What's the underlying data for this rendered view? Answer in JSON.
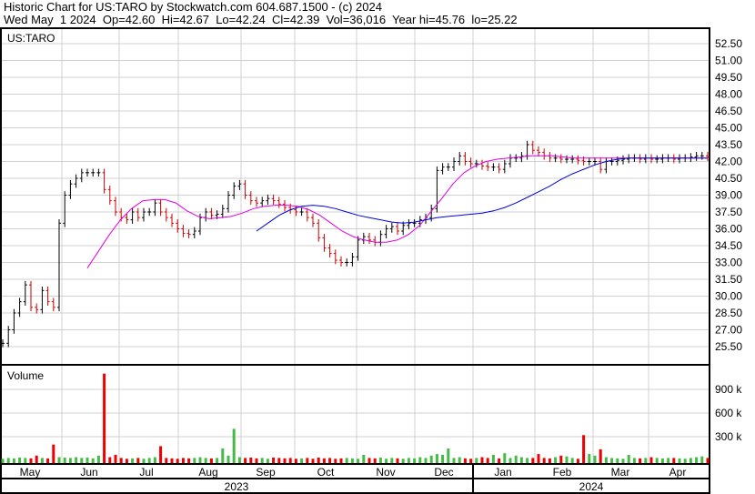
{
  "header": {
    "title": "Historic Chart for US:TARO by Stockwatch.com 604.687.1500 - (c) 2024",
    "quote": "Wed May  1 2024  Op=42.60  Hi=42.67  Lo=42.24  Cl=42.39  Vol=36,016  Year hi=45.76  lo=25.22"
  },
  "chart_data": [
    {
      "type": "bar",
      "title": "US:TARO",
      "subtype": "ohlc",
      "ylim": [
        24.5,
        53.5
      ],
      "yticks": [
        "52.50",
        "51.00",
        "49.50",
        "48.00",
        "46.50",
        "45.00",
        "43.50",
        "42.00",
        "40.50",
        "39.00",
        "37.50",
        "36.00",
        "34.50",
        "33.00",
        "31.50",
        "30.00",
        "28.50",
        "27.00",
        "25.50"
      ],
      "grid": true,
      "close": [
        25.8,
        27,
        28.5,
        29.5,
        31,
        29,
        28.8,
        30.5,
        29.5,
        29,
        36.5,
        39,
        40,
        40.5,
        41,
        41,
        41,
        41,
        39.5,
        38.5,
        37.5,
        37,
        36.8,
        37.5,
        37,
        37.5,
        37.5,
        38.3,
        37.5,
        37,
        36.5,
        36,
        35.6,
        35.5,
        35.8,
        37,
        37.5,
        37.2,
        37.3,
        37.8,
        39,
        39.8,
        40,
        39,
        38.5,
        38.3,
        38.5,
        38.7,
        38.5,
        38.2,
        37.9,
        37.7,
        37.5,
        37.5,
        37,
        36.5,
        35.2,
        34.3,
        33.8,
        33.2,
        33,
        33,
        33.5,
        35,
        35.3,
        35,
        34.8,
        35.5,
        36,
        36.2,
        35.8,
        36.3,
        36.5,
        36.5,
        36.8,
        37,
        37.8,
        41.2,
        41.5,
        41.5,
        42,
        42.5,
        42,
        41.8,
        41.8,
        41.6,
        41.5,
        41.5,
        41.3,
        41.8,
        42.3,
        42.3,
        42.5,
        43.5,
        43,
        42.8,
        42.5,
        42.3,
        42.3,
        42.2,
        42.2,
        42.2,
        42.1,
        42,
        42,
        42,
        41.3,
        42,
        42,
        42.1,
        42.2,
        42.3,
        42.3,
        42.2,
        42.3,
        42.2,
        42.2,
        42.3,
        42.3,
        42.2,
        42.3,
        42.3,
        42.4,
        42.5,
        42.5,
        42.4
      ],
      "ma_short": {
        "color": "#e000e0",
        "start_index": 15,
        "values": [
          32.5,
          34,
          35.5,
          36.8,
          37.8,
          38.5,
          38.6,
          38.6,
          38.3,
          37.6,
          37.1,
          36.9,
          37,
          37.1,
          37.4,
          37.8,
          38,
          38.1,
          38.1,
          38,
          37.7,
          37.2,
          36.5,
          35.8,
          35.3,
          35,
          34.8,
          34.8,
          35,
          35.5,
          36.3,
          37.5,
          38.7,
          40,
          41,
          41.6,
          42,
          42.2,
          42.3,
          42.4,
          42.5,
          42.5,
          42.5,
          42.4,
          42.3,
          42.3,
          42.3,
          42.3,
          42.3,
          42.3,
          42.3,
          42.3,
          42.3,
          42.3,
          42.3,
          42.3,
          42.3
        ]
      },
      "ma_long": {
        "color": "#0000e0",
        "start_index": 45,
        "values": [
          35.8,
          36.5,
          37.2,
          37.7,
          38,
          38.1,
          38,
          37.8,
          37.5,
          37.2,
          37,
          36.8,
          36.6,
          36.5,
          36.6,
          36.8,
          37,
          37.1,
          37.2,
          37.3,
          37.4,
          37.6,
          37.9,
          38.3,
          38.8,
          39.3,
          39.8,
          40.4,
          40.9,
          41.3,
          41.7,
          42,
          42.2,
          42.3,
          42.3,
          42.3,
          42.3,
          42.3,
          42.3,
          42.3,
          42.3
        ]
      },
      "up_color": "#000000",
      "down_color": "#cc0000"
    },
    {
      "type": "bar",
      "title": "Volume",
      "ylim": [
        0,
        1150000
      ],
      "yticks": [
        "900 k",
        "600 k",
        "300 k"
      ],
      "values_k": [
        20,
        30,
        25,
        35,
        30,
        25,
        60,
        30,
        25,
        200,
        40,
        35,
        30,
        40,
        30,
        35,
        25,
        60,
        1100,
        40,
        70,
        30,
        20,
        25,
        30,
        20,
        30,
        40,
        180,
        30,
        25,
        20,
        30,
        25,
        30,
        40,
        30,
        25,
        30,
        150,
        60,
        400,
        40,
        30,
        35,
        25,
        30,
        20,
        35,
        30,
        25,
        30,
        20,
        25,
        30,
        20,
        35,
        25,
        30,
        20,
        25,
        30,
        25,
        20,
        70,
        30,
        25,
        35,
        20,
        30,
        25,
        20,
        30,
        25,
        40,
        30,
        60,
        80,
        70,
        150,
        30,
        40,
        25,
        20,
        30,
        40,
        30,
        70,
        25,
        90,
        30,
        60,
        40,
        30,
        30,
        80,
        30,
        25,
        40,
        60,
        50,
        30,
        20,
        320,
        80,
        60,
        140,
        40,
        30,
        25,
        20,
        70,
        30,
        25,
        30,
        40,
        30,
        25,
        30,
        30,
        25,
        20,
        30,
        40,
        50,
        30
      ],
      "up_color": "#44bb44",
      "down_color": "#ee0000"
    }
  ],
  "xaxis": {
    "months": [
      "May",
      "Jun",
      "Jul",
      "Aug",
      "Sep",
      "Oct",
      "Nov",
      "Dec",
      "Jan",
      "Feb",
      "Mar",
      "Apr"
    ],
    "years": [
      "2023",
      "2024"
    ]
  }
}
